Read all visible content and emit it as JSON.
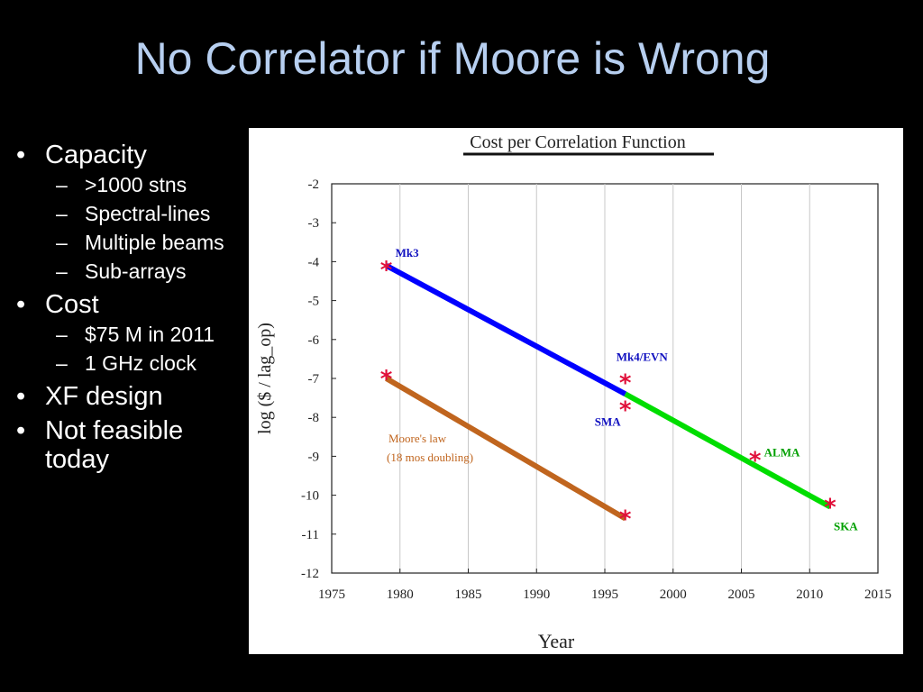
{
  "slide": {
    "title": "No Correlator if Moore is Wrong"
  },
  "bullets": [
    {
      "level": 1,
      "text": "Capacity"
    },
    {
      "level": 2,
      "text": ">1000 stns"
    },
    {
      "level": 2,
      "text": "Spectral-lines"
    },
    {
      "level": 2,
      "text": "Multiple beams"
    },
    {
      "level": 2,
      "text": "Sub-arrays"
    },
    {
      "level": 1,
      "text": "Cost"
    },
    {
      "level": 2,
      "text": "$75 M in 2011"
    },
    {
      "level": 2,
      "text": "1 GHz clock"
    },
    {
      "level": 1,
      "text": "XF design"
    },
    {
      "level": 1,
      "text": "Not feasible today"
    }
  ],
  "bullet_markers": {
    "level1": "•",
    "level2": "–"
  },
  "chart_data": {
    "type": "line",
    "title": "Cost per Correlation Function",
    "xlabel": "Year",
    "ylabel": "log ($ / lag_op)",
    "xlim": [
      1975,
      2015
    ],
    "ylim": [
      -12,
      -2
    ],
    "xticks": [
      1975,
      1980,
      1985,
      1990,
      1995,
      2000,
      2005,
      2010,
      2015
    ],
    "yticks": [
      -2,
      -3,
      -4,
      -5,
      -6,
      -7,
      -8,
      -9,
      -10,
      -11,
      -12
    ],
    "grid": "vertical",
    "series": [
      {
        "name": "",
        "color": "#0000ff",
        "x": [
          1979,
          1996.5
        ],
        "y": [
          -4.1,
          -7.4
        ]
      },
      {
        "name": "",
        "color": "#00dd00",
        "x": [
          1996.5,
          2011.5
        ],
        "y": [
          -7.4,
          -10.3
        ]
      },
      {
        "name": "Moore's law",
        "subtitle": "(18 mos doubling)",
        "color": "#c0651e",
        "x": [
          1979,
          1996.5
        ],
        "y": [
          -7.0,
          -10.6
        ]
      }
    ],
    "points": [
      {
        "label": "Mk3",
        "x": 1979,
        "y": -4.2,
        "label_color": "#1010c0"
      },
      {
        "label": "Mk4/EVN",
        "x": 1996.5,
        "y": -7.1,
        "label_color": "#1010c0"
      },
      {
        "label": "SMA",
        "x": 1996.5,
        "y": -7.8,
        "label_color": "#1010c0"
      },
      {
        "label": "ALMA",
        "x": 2006,
        "y": -9.1,
        "label_color": "#00a000"
      },
      {
        "label": "SKA",
        "x": 2011.5,
        "y": -10.3,
        "label_color": "#00a000"
      },
      {
        "label": "",
        "x": 1979,
        "y": -7.0,
        "label_color": ""
      },
      {
        "label": "",
        "x": 1996.5,
        "y": -10.6,
        "label_color": ""
      }
    ],
    "marker_color": "#e0103a",
    "annotation_color": "#c0651e"
  }
}
